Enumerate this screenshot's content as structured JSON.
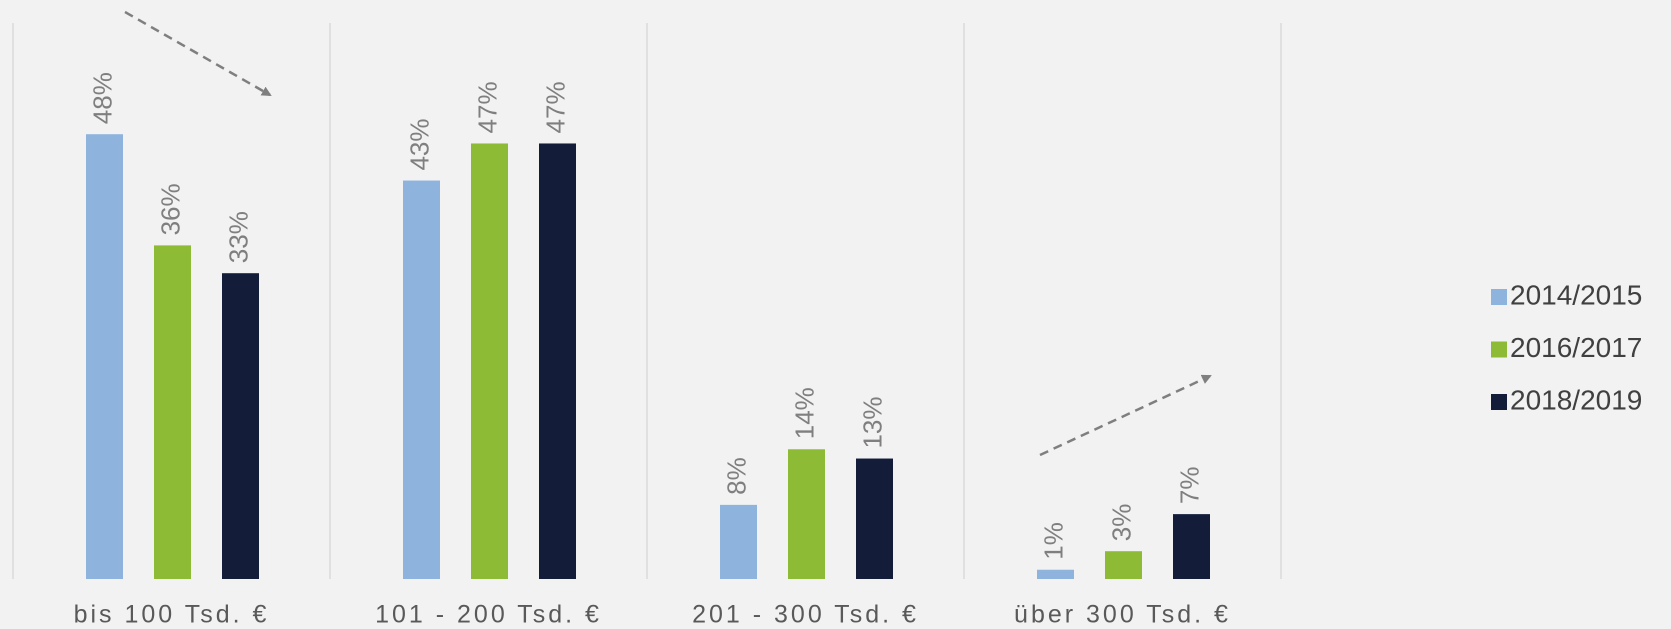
{
  "chart_data": {
    "type": "bar",
    "categories": [
      "bis 100 Tsd. €",
      "101 - 200 Tsd. €",
      "201 - 300 Tsd. €",
      "über 300 Tsd. €"
    ],
    "series": [
      {
        "name": "2014/2015",
        "color": "#8eb4de",
        "values": [
          48,
          43,
          8,
          1
        ],
        "value_labels": [
          "48%",
          "43%",
          "8%",
          "1%"
        ]
      },
      {
        "name": "2016/2017",
        "color": "#8dbb35",
        "values": [
          36,
          47,
          14,
          3
        ],
        "value_labels": [
          "36%",
          "47%",
          "14%",
          "3%"
        ]
      },
      {
        "name": "2018/2019",
        "color": "#131d3a",
        "values": [
          33,
          47,
          13,
          7
        ],
        "value_labels": [
          "33%",
          "47%",
          "13%",
          "7%"
        ]
      }
    ],
    "ylim": [
      0,
      60
    ],
    "legend": "right"
  }
}
